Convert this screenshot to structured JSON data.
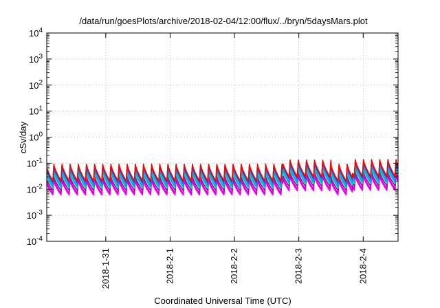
{
  "chart_data": {
    "type": "line",
    "title": "/data/run/goesPlots/archive/2018-02-04/12:00/flux/../bryn/5daysMars.plot",
    "xlabel": "Coordinated Universal Time (UTC)",
    "ylabel": "cSv/day",
    "y_scale": "log",
    "ylim": [
      0.0001,
      10000
    ],
    "xlim": [
      "2018-01-30T02:00",
      "2018-02-04T13:00"
    ],
    "y_ticks": [
      {
        "base": "10",
        "exp": "-4"
      },
      {
        "base": "10",
        "exp": "-3"
      },
      {
        "base": "10",
        "exp": "-2"
      },
      {
        "base": "10",
        "exp": "-1"
      },
      {
        "base": "10",
        "exp": "0"
      },
      {
        "base": "10",
        "exp": "1"
      },
      {
        "base": "10",
        "exp": "2"
      },
      {
        "base": "10",
        "exp": "3"
      },
      {
        "base": "10",
        "exp": "4"
      }
    ],
    "x_ticks": [
      {
        "label": "2018-1-31",
        "date": "2018-01-31T00:00"
      },
      {
        "label": "2018-2-1",
        "date": "2018-02-01T00:00"
      },
      {
        "label": "2018-2-2",
        "date": "2018-02-02T00:00"
      },
      {
        "label": "2018-2-3",
        "date": "2018-02-03T00:00"
      },
      {
        "label": "2018-2-4",
        "date": "2018-02-04T00:00"
      }
    ],
    "grid": true,
    "cycles_per_day": 7.9,
    "series": [
      {
        "color": "#ff00ff",
        "low": 0.006,
        "high": 0.022
      },
      {
        "color": "#cc00cc",
        "low": 0.007,
        "high": 0.026
      },
      {
        "color": "#b000a0",
        "low": 0.009,
        "high": 0.032
      },
      {
        "color": "#00d8d8",
        "low": 0.011,
        "high": 0.045
      },
      {
        "color": "#00b0b0",
        "low": 0.013,
        "high": 0.055
      },
      {
        "color": "#3366ff",
        "low": 0.016,
        "high": 0.075
      },
      {
        "color": "#2040c0",
        "low": 0.019,
        "high": 0.085
      },
      {
        "color": "#ff0000",
        "low": 0.021,
        "high": 0.095
      }
    ],
    "enhancement_periods": [
      {
        "start": "2018-02-02T18:00",
        "end": "2018-02-03T12:00",
        "factor": 1.45
      },
      {
        "start": "2018-02-03T20:00",
        "end": "2018-02-04T13:00",
        "factor": 1.5
      }
    ]
  }
}
